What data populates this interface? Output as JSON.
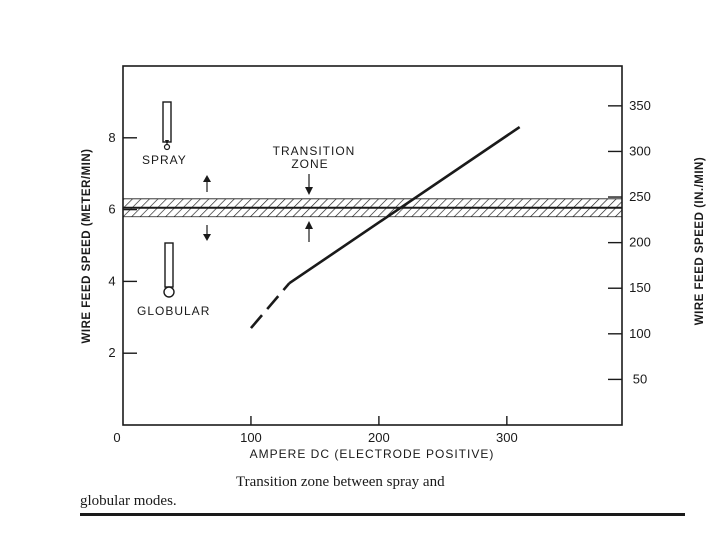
{
  "chart_data": {
    "type": "line",
    "xlabel": "AMPERE DC (ELECTRODE POSITIVE)",
    "ylabel_left": "WIRE FEED SPEED (METER/MIN)",
    "ylabel_right": "WIRE FEED SPEED (IN./MIN)",
    "xlim": [
      0,
      390
    ],
    "ylim_left": [
      0,
      10
    ],
    "ylim_right": [
      0,
      393.7
    ],
    "x_ticks": [
      0,
      100,
      200,
      300
    ],
    "y_ticks_left": [
      2,
      4,
      6,
      8
    ],
    "y_ticks_right": [
      50,
      100,
      150,
      200,
      250,
      300,
      350
    ],
    "series": [
      {
        "style": "dashed",
        "x": [
          100,
          130
        ],
        "y": [
          2.7,
          3.95
        ]
      },
      {
        "style": "solid",
        "x": [
          130,
          310
        ],
        "y": [
          3.95,
          8.3
        ]
      }
    ],
    "transition_zone": {
      "center": 6.05,
      "lower": 5.8,
      "upper": 6.3
    },
    "annotations": {
      "transition_line1": "TRANSITION",
      "transition_line2": "ZONE",
      "spray": "SPRAY",
      "globular": "GLOBULAR"
    },
    "grid": false
  },
  "caption": {
    "line1": "Transition zone between spray and",
    "line2": "globular modes."
  }
}
